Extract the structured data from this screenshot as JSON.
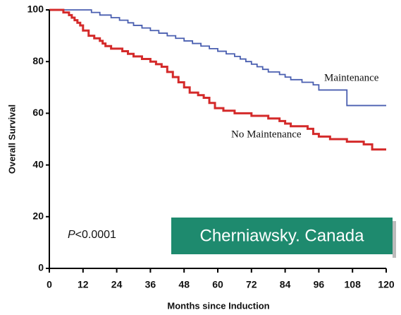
{
  "chart_data": {
    "type": "step",
    "xlabel": "Months since Induction",
    "ylabel": "Overall Survival",
    "xlim": [
      0,
      120
    ],
    "ylim": [
      0,
      100
    ],
    "xticks": [
      0,
      12,
      24,
      36,
      48,
      60,
      72,
      84,
      96,
      108,
      120
    ],
    "yticks": [
      0,
      20,
      40,
      60,
      80,
      100
    ],
    "series": [
      {
        "name": "Maintenance",
        "color": "#4a5fb0",
        "x": [
          0,
          15,
          18,
          22,
          25,
          28,
          30,
          33,
          36,
          39,
          42,
          45,
          48,
          51,
          54,
          57,
          60,
          63,
          66,
          68,
          70,
          72,
          74,
          76,
          78,
          82,
          84,
          86,
          90,
          94,
          96,
          106,
          120
        ],
        "values": [
          100,
          99,
          98,
          97,
          96,
          95,
          94,
          93,
          92,
          91,
          90,
          89,
          88,
          87,
          86,
          85,
          84,
          83,
          82,
          81,
          80,
          79,
          78,
          77,
          76,
          75,
          74,
          73,
          72,
          71,
          69,
          63,
          63
        ]
      },
      {
        "name": "No Maintenance",
        "color": "#d42a2a",
        "x": [
          0,
          5,
          7,
          8,
          9,
          10,
          11,
          12,
          14,
          16,
          18,
          19,
          20,
          22,
          26,
          28,
          30,
          33,
          36,
          38,
          40,
          42,
          44,
          46,
          48,
          50,
          53,
          55,
          57,
          59,
          62,
          66,
          72,
          78,
          82,
          84,
          86,
          92,
          94,
          96,
          100,
          106,
          112,
          115,
          120
        ],
        "values": [
          100,
          99,
          98,
          97,
          96,
          95,
          94,
          92,
          90,
          89,
          88,
          87,
          86,
          85,
          84,
          83,
          82,
          81,
          80,
          79,
          78,
          76,
          74,
          72,
          70,
          68,
          67,
          66,
          64,
          62,
          61,
          60,
          59,
          58,
          57,
          56,
          55,
          54,
          52,
          51,
          50,
          49,
          48,
          46,
          46
        ]
      }
    ],
    "pvalue": {
      "symbol": "P",
      "text": "<0.0001"
    },
    "banner": "Cherniawsky. Canada"
  }
}
